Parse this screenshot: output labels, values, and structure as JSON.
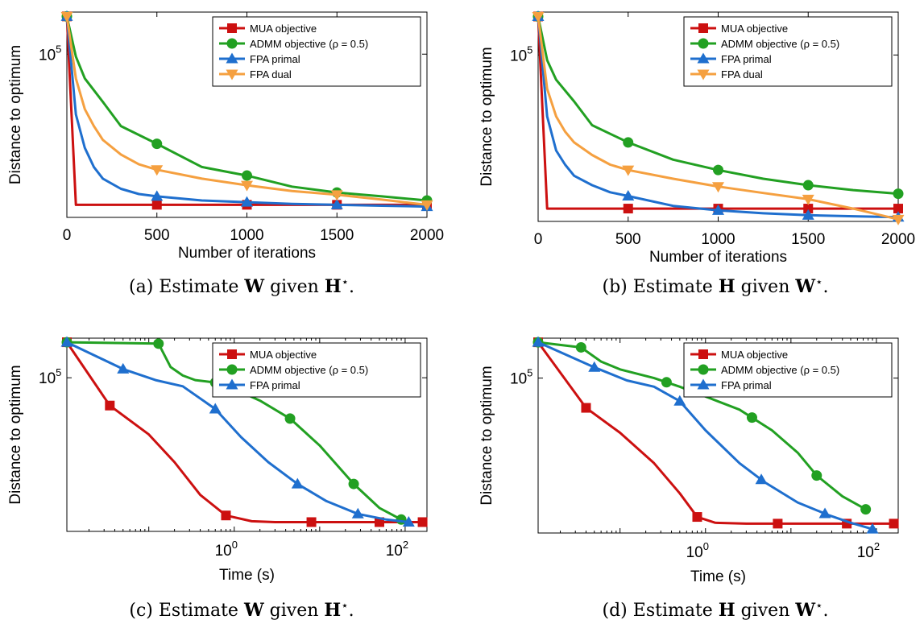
{
  "colors": {
    "mua": "#cc1010",
    "admm": "#22a022",
    "fpa_primal": "#1f6fce",
    "fpa_dual": "#f5a040"
  },
  "chart_data": [
    {
      "type": "line",
      "caption_prefix": "(a) Estimate",
      "caption_mid": "given",
      "caption_bold1": "W",
      "caption_bold2": "H",
      "caption_star": "⋆",
      "caption_end": ".",
      "xlabel": "Number of iterations",
      "ylabel": "Distance to optimum",
      "xscale": "linear",
      "yscale": "log",
      "xlim": [
        0,
        2000
      ],
      "xticks": [
        "0",
        "500",
        "1000",
        "1500",
        "2000"
      ],
      "ytick_base": "10",
      "ytick_exp": "5",
      "legend_position": "top-right",
      "series": [
        {
          "name": "MUA objective",
          "color_key": "mua",
          "marker": "square",
          "x": [
            0,
            50,
            100,
            200,
            500,
            1000,
            1500,
            2000
          ],
          "y": [
            1.02,
            0.085,
            0.085,
            0.085,
            0.085,
            0.085,
            0.085,
            0.085
          ],
          "markers_x": [
            0,
            500,
            1000,
            1500,
            2000
          ]
        },
        {
          "name": "ADMM objective (ρ = 0.5)",
          "color_key": "admm",
          "marker": "circle",
          "x": [
            0,
            50,
            100,
            200,
            300,
            500,
            750,
            1000,
            1250,
            1500,
            1750,
            2000
          ],
          "y": [
            1.02,
            0.6,
            0.45,
            0.33,
            0.24,
            0.19,
            0.14,
            0.125,
            0.108,
            0.1,
            0.095,
            0.09
          ],
          "markers_x": [
            0,
            500,
            1000,
            1500,
            2000
          ]
        },
        {
          "name": "FPA primal",
          "color_key": "fpa_primal",
          "marker": "triangle-up",
          "x": [
            0,
            50,
            100,
            150,
            200,
            300,
            400,
            500,
            750,
            1000,
            1250,
            1500,
            1750,
            2000
          ],
          "y": [
            1.02,
            0.28,
            0.18,
            0.14,
            0.12,
            0.105,
            0.098,
            0.095,
            0.09,
            0.088,
            0.086,
            0.085,
            0.084,
            0.083
          ],
          "markers_x": [
            0,
            500,
            1000,
            1500,
            2000
          ]
        },
        {
          "name": "FPA dual",
          "color_key": "fpa_dual",
          "marker": "triangle-down",
          "x": [
            0,
            50,
            100,
            150,
            200,
            300,
            400,
            500,
            750,
            1000,
            1250,
            1500,
            1750,
            2000
          ],
          "y": [
            1.02,
            0.45,
            0.3,
            0.24,
            0.2,
            0.165,
            0.145,
            0.135,
            0.12,
            0.11,
            0.102,
            0.097,
            0.091,
            0.085
          ],
          "markers_x": [
            0,
            500,
            1000,
            1500,
            2000
          ]
        }
      ]
    },
    {
      "type": "line",
      "caption_prefix": "(b) Estimate",
      "caption_mid": "given",
      "caption_bold1": "H",
      "caption_bold2": "W",
      "caption_star": "⋆",
      "caption_end": ".",
      "xlabel": "Number of iterations",
      "ylabel": "Distance to optimum",
      "xscale": "linear",
      "yscale": "log",
      "xlim": [
        0,
        2000
      ],
      "xticks": [
        "0",
        "500",
        "1000",
        "1500",
        "2000"
      ],
      "ytick_base": "10",
      "ytick_exp": "5",
      "legend_position": "top-right",
      "series": [
        {
          "name": "MUA objective",
          "color_key": "mua",
          "marker": "square",
          "x": [
            0,
            50,
            100,
            200,
            500,
            1000,
            1500,
            2000
          ],
          "y": [
            1.02,
            0.085,
            0.085,
            0.085,
            0.085,
            0.085,
            0.085,
            0.085
          ],
          "markers_x": [
            0,
            500,
            1000,
            1500,
            2000
          ]
        },
        {
          "name": "ADMM objective (ρ = 0.5)",
          "color_key": "admm",
          "marker": "circle",
          "x": [
            0,
            50,
            100,
            200,
            300,
            500,
            750,
            1000,
            1250,
            1500,
            1750,
            2000
          ],
          "y": [
            1.02,
            0.58,
            0.45,
            0.34,
            0.25,
            0.2,
            0.16,
            0.14,
            0.125,
            0.115,
            0.108,
            0.103
          ],
          "markers_x": [
            0,
            500,
            1000,
            1500,
            2000
          ]
        },
        {
          "name": "FPA primal",
          "color_key": "fpa_primal",
          "marker": "triangle-up",
          "x": [
            0,
            50,
            100,
            150,
            200,
            300,
            400,
            500,
            750,
            1000,
            1250,
            1500,
            1750,
            2000
          ],
          "y": [
            1.02,
            0.28,
            0.18,
            0.15,
            0.13,
            0.115,
            0.105,
            0.1,
            0.088,
            0.083,
            0.08,
            0.078,
            0.077,
            0.076
          ],
          "markers_x": [
            0,
            500,
            1000,
            1500,
            2000
          ]
        },
        {
          "name": "FPA dual",
          "color_key": "fpa_dual",
          "marker": "triangle-down",
          "x": [
            0,
            50,
            100,
            150,
            200,
            300,
            400,
            500,
            750,
            1000,
            1250,
            1500,
            1750,
            2000
          ],
          "y": [
            1.02,
            0.4,
            0.28,
            0.23,
            0.2,
            0.17,
            0.15,
            0.14,
            0.125,
            0.113,
            0.104,
            0.096,
            0.085,
            0.074
          ],
          "markers_x": [
            0,
            500,
            1000,
            1500,
            2000
          ]
        }
      ]
    },
    {
      "type": "line",
      "caption_prefix": "(c) Estimate",
      "caption_mid": "given",
      "caption_bold1": "W",
      "caption_bold2": "H",
      "caption_star": "⋆",
      "caption_end": ".",
      "xlabel": "Time (s)",
      "ylabel": "Distance to optimum",
      "xscale": "log",
      "yscale": "log",
      "xlim": [
        0.011,
        180
      ],
      "xtick_labels": [
        {
          "base": "10",
          "exp": "0",
          "value": 1
        },
        {
          "base": "10",
          "exp": "2",
          "value": 100
        }
      ],
      "ytick_base": "10",
      "ytick_exp": "5",
      "legend_position": "top-right",
      "series": [
        {
          "name": "MUA objective",
          "color_key": "mua",
          "marker": "square",
          "x": [
            0.011,
            0.035,
            0.1,
            0.2,
            0.4,
            0.8,
            1.6,
            3,
            8,
            20,
            50,
            160
          ],
          "y": [
            1.02,
            0.42,
            0.28,
            0.19,
            0.12,
            0.09,
            0.083,
            0.082,
            0.082,
            0.082,
            0.082,
            0.082
          ],
          "markers_x": [
            0.011,
            0.035,
            0.8,
            8,
            50,
            160
          ]
        },
        {
          "name": "ADMM objective (ρ = 0.5)",
          "color_key": "admm",
          "marker": "circle",
          "x": [
            0.011,
            0.13,
            0.18,
            0.25,
            0.35,
            0.6,
            1.0,
            2.0,
            4.5,
            10,
            25,
            50,
            90
          ],
          "y": [
            1.02,
            1.0,
            0.72,
            0.64,
            0.6,
            0.58,
            0.53,
            0.45,
            0.35,
            0.24,
            0.14,
            0.1,
            0.085
          ],
          "markers_x": [
            0.011,
            0.13,
            0.6,
            4.5,
            25,
            90
          ]
        },
        {
          "name": "FPA primal",
          "color_key": "fpa_primal",
          "marker": "triangle-up",
          "x": [
            0.011,
            0.05,
            0.12,
            0.25,
            0.6,
            1.2,
            2.5,
            5.5,
            12,
            28,
            60,
            110
          ],
          "y": [
            1.02,
            0.7,
            0.6,
            0.55,
            0.4,
            0.27,
            0.19,
            0.14,
            0.11,
            0.092,
            0.085,
            0.082
          ],
          "markers_x": [
            0.011,
            0.05,
            0.6,
            5.5,
            28,
            110
          ]
        }
      ]
    },
    {
      "type": "line",
      "caption_prefix": "(d) Estimate",
      "caption_mid": "given",
      "caption_bold1": "H",
      "caption_bold2": "W",
      "caption_star": "⋆",
      "caption_end": ".",
      "xlabel": "Time (s)",
      "ylabel": "Distance to optimum",
      "xscale": "log",
      "yscale": "log",
      "xlim": [
        0.011,
        180
      ],
      "xtick_labels": [
        {
          "base": "10",
          "exp": "0",
          "value": 1
        },
        {
          "base": "10",
          "exp": "2",
          "value": 100
        }
      ],
      "ytick_base": "10",
      "ytick_exp": "5",
      "legend_position": "top-right",
      "series": [
        {
          "name": "MUA objective",
          "color_key": "mua",
          "marker": "square",
          "x": [
            0.011,
            0.04,
            0.1,
            0.25,
            0.5,
            0.8,
            1.3,
            3,
            7,
            20,
            45,
            160
          ],
          "y": [
            1.02,
            0.41,
            0.29,
            0.19,
            0.125,
            0.09,
            0.083,
            0.082,
            0.082,
            0.082,
            0.082,
            0.082
          ],
          "markers_x": [
            0.011,
            0.04,
            0.8,
            7,
            45,
            160
          ]
        },
        {
          "name": "ADMM objective (ρ = 0.5)",
          "color_key": "admm",
          "marker": "circle",
          "x": [
            0.011,
            0.035,
            0.06,
            0.1,
            0.25,
            0.5,
            1.0,
            2.5,
            6,
            12,
            20,
            40,
            75
          ],
          "y": [
            1.02,
            0.95,
            0.78,
            0.7,
            0.62,
            0.55,
            0.48,
            0.4,
            0.3,
            0.22,
            0.16,
            0.12,
            0.1
          ],
          "markers_x": [
            0.011,
            0.035,
            0.35,
            3.5,
            20,
            75
          ]
        },
        {
          "name": "FPA primal",
          "color_key": "fpa_primal",
          "marker": "triangle-up",
          "x": [
            0.011,
            0.05,
            0.12,
            0.25,
            0.5,
            1.0,
            2.5,
            5,
            12,
            28,
            50,
            90
          ],
          "y": [
            1.02,
            0.72,
            0.6,
            0.55,
            0.45,
            0.3,
            0.19,
            0.145,
            0.11,
            0.092,
            0.083,
            0.076
          ],
          "markers_x": [
            0.011,
            0.05,
            0.5,
            4.5,
            25,
            90
          ]
        }
      ]
    }
  ]
}
